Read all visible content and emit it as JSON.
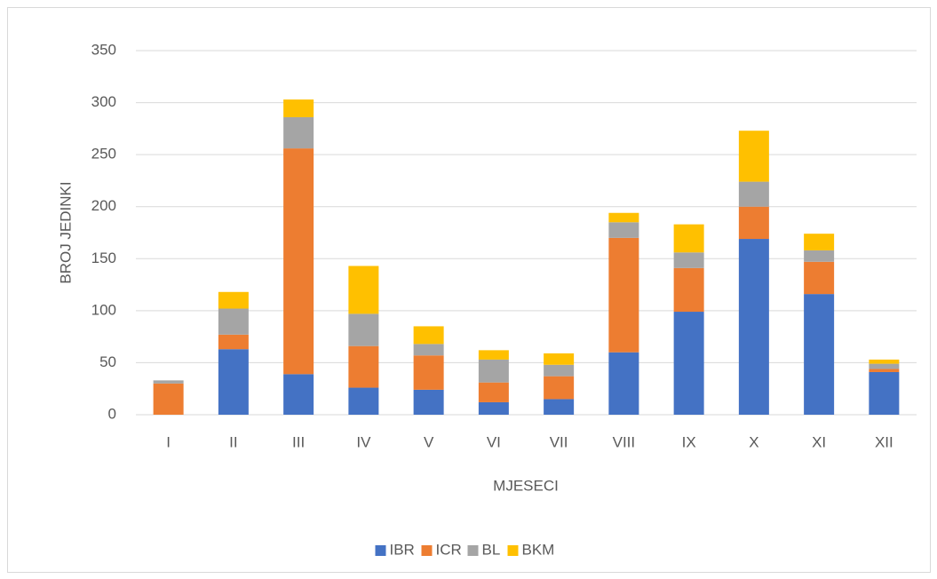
{
  "chart_data": {
    "type": "stacked_bar",
    "categories": [
      "I",
      "II",
      "III",
      "IV",
      "V",
      "VI",
      "VII",
      "VIII",
      "IX",
      "X",
      "XI",
      "XII"
    ],
    "series": [
      {
        "name": "IBR",
        "color": "#4472c4",
        "values": [
          0,
          63,
          39,
          26,
          24,
          12,
          15,
          60,
          99,
          169,
          116,
          41
        ]
      },
      {
        "name": "ICR",
        "color": "#ed7d31",
        "values": [
          30,
          14,
          217,
          40,
          33,
          19,
          22,
          110,
          42,
          31,
          31,
          3
        ]
      },
      {
        "name": "BL",
        "color": "#a5a5a5",
        "values": [
          3,
          25,
          30,
          31,
          11,
          22,
          11,
          15,
          15,
          24,
          11,
          5
        ]
      },
      {
        "name": "BKM",
        "color": "#ffc000",
        "values": [
          0,
          16,
          17,
          46,
          17,
          9,
          11,
          9,
          27,
          49,
          16,
          4
        ]
      }
    ],
    "xlabel": "MJESECI",
    "ylabel": "BROJ JEDINKI",
    "ylim": [
      0,
      350
    ],
    "yticks": [
      0,
      50,
      100,
      150,
      200,
      250,
      300,
      350
    ],
    "grid": true,
    "legend": "bottom"
  }
}
